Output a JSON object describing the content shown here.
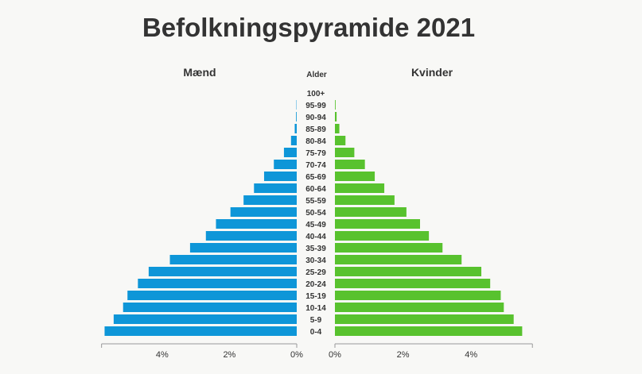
{
  "chart_data": {
    "type": "bar",
    "title": "Befolkningspyramide 2021",
    "left_header": "Mænd",
    "center_header": "Alder",
    "right_header": "Kvinder",
    "categories": [
      "100+",
      "95-99",
      "90-94",
      "85-89",
      "80-84",
      "75-79",
      "70-74",
      "65-69",
      "60-64",
      "55-59",
      "50-54",
      "45-49",
      "40-44",
      "35-39",
      "30-34",
      "25-29",
      "20-24",
      "15-19",
      "10-14",
      "5-9",
      "0-4"
    ],
    "series": [
      {
        "name": "Mænd",
        "color": "#0e96d8",
        "values": [
          0.0,
          0.01,
          0.02,
          0.06,
          0.17,
          0.38,
          0.68,
          0.97,
          1.27,
          1.58,
          1.97,
          2.4,
          2.7,
          3.17,
          3.77,
          4.4,
          4.72,
          5.03,
          5.16,
          5.44,
          5.71
        ]
      },
      {
        "name": "Kvinder",
        "color": "#58c22e",
        "values": [
          0.0,
          0.02,
          0.05,
          0.13,
          0.31,
          0.57,
          0.88,
          1.17,
          1.45,
          1.75,
          2.1,
          2.5,
          2.76,
          3.16,
          3.72,
          4.3,
          4.56,
          4.87,
          4.96,
          5.25,
          5.5
        ]
      }
    ],
    "left_axis": {
      "ticks": [
        0,
        2,
        4
      ],
      "tick_labels": [
        "0%",
        "2%",
        "4%"
      ],
      "range": [
        0,
        5.8
      ]
    },
    "right_axis": {
      "ticks": [
        0,
        2,
        4
      ],
      "tick_labels": [
        "0%",
        "2%",
        "4%"
      ],
      "range": [
        0,
        5.8
      ]
    },
    "grid": false
  }
}
